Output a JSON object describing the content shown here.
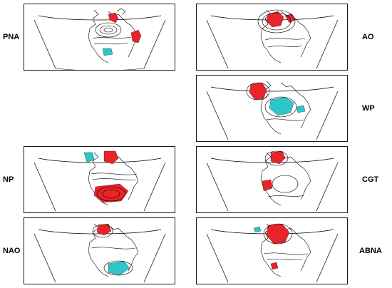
{
  "panels": [
    {
      "label": "PNA"
    },
    {
      "label": "AO"
    },
    {
      "label": "WP"
    },
    {
      "label": "NP"
    },
    {
      "label": "CGT"
    },
    {
      "label": "NAO"
    },
    {
      "label": "ABNA"
    }
  ],
  "colors": {
    "positive_fill": "#e8242a",
    "negative_fill": "#2ec6c9",
    "contour": "#000000",
    "coastline": "#000000",
    "frame": "#1a1a1a"
  }
}
